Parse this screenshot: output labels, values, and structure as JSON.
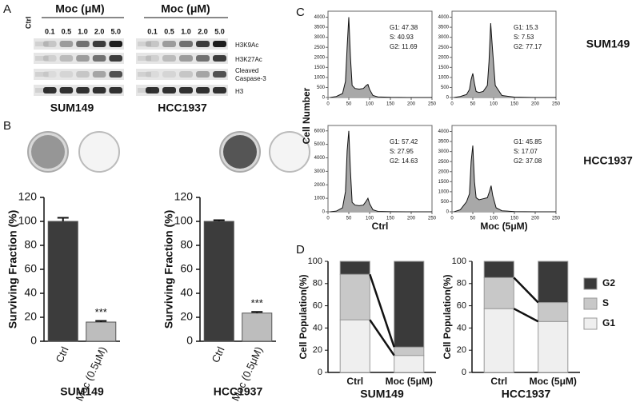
{
  "panel_labels": [
    "A",
    "B",
    "C",
    "D"
  ],
  "blot": {
    "header": "Moc (μM)",
    "ctrl": "Ctrl",
    "concentrations": [
      "0.1",
      "0.5",
      "1.0",
      "2.0",
      "5.0"
    ],
    "rows": [
      "H3K9Ac",
      "H3K27Ac",
      "Cleaved",
      "Caspase-3",
      "H3"
    ],
    "cell_lines": [
      "SUM149",
      "HCC1937"
    ]
  },
  "flow": {
    "ylabel": "Cell Number",
    "row_labels": [
      "SUM149",
      "HCC1937"
    ],
    "column_labels": [
      "Ctrl",
      "Moc (5μM)"
    ]
  },
  "chart_data": [
    {
      "type": "bar",
      "title": "SUM149",
      "ylabel": "Surviving Fraction (%)",
      "categories": [
        "Ctrl",
        "Moc (0.5μM)"
      ],
      "values": [
        100,
        16
      ],
      "errors": [
        3,
        1
      ],
      "colors": [
        "#3c3c3c",
        "#bdbdbd"
      ],
      "annotation": "***",
      "ylim": [
        0,
        120
      ],
      "yticks": [
        0,
        20,
        40,
        60,
        80,
        100,
        120
      ]
    },
    {
      "type": "bar",
      "title": "HCC1937",
      "ylabel": "Surviving Fraction (%)",
      "categories": [
        "Ctrl",
        "Moc (0.5μM)"
      ],
      "values": [
        100,
        23.5
      ],
      "errors": [
        1,
        1
      ],
      "colors": [
        "#3c3c3c",
        "#bdbdbd"
      ],
      "annotation": "***",
      "ylim": [
        0,
        120
      ],
      "yticks": [
        0,
        20,
        40,
        60,
        80,
        100,
        120
      ]
    },
    {
      "type": "line",
      "x": [
        5,
        20,
        35,
        42,
        46,
        50,
        54,
        58,
        65,
        75,
        85,
        92,
        96,
        100,
        108,
        120,
        150,
        200,
        250
      ],
      "values": [
        0,
        50,
        200,
        800,
        2500,
        4000,
        2000,
        600,
        450,
        420,
        450,
        600,
        650,
        400,
        100,
        30,
        10,
        0,
        0
      ],
      "xlim": [
        0,
        250
      ],
      "xticks": [
        0,
        50,
        100,
        150,
        200,
        250
      ],
      "ylim": [
        0,
        4300
      ],
      "yticks": [
        0,
        500,
        1000,
        1500,
        2000,
        2500,
        3000,
        3500,
        4000
      ],
      "stats": [
        "G1: 47.38",
        "S: 40.93",
        "G2: 11.69"
      ]
    },
    {
      "type": "line",
      "x": [
        5,
        20,
        35,
        42,
        46,
        50,
        54,
        58,
        65,
        75,
        85,
        89,
        93,
        97,
        104,
        120,
        150,
        200,
        250
      ],
      "values": [
        0,
        50,
        150,
        400,
        900,
        1200,
        700,
        300,
        250,
        300,
        600,
        1800,
        3700,
        2500,
        600,
        100,
        20,
        0,
        0
      ],
      "xlim": [
        0,
        250
      ],
      "xticks": [
        0,
        50,
        100,
        150,
        200,
        250
      ],
      "ylim": [
        0,
        4300
      ],
      "yticks": [
        0,
        500,
        1000,
        1500,
        2000,
        2500,
        3000,
        3500,
        4000
      ],
      "stats": [
        "G1: 15.3",
        "S: 7.53",
        "G2: 77.17"
      ]
    },
    {
      "type": "line",
      "x": [
        5,
        20,
        35,
        42,
        46,
        50,
        54,
        58,
        65,
        75,
        85,
        92,
        96,
        100,
        108,
        120,
        150,
        200,
        250
      ],
      "values": [
        0,
        50,
        300,
        1500,
        4500,
        6000,
        3000,
        700,
        500,
        450,
        500,
        800,
        1000,
        600,
        150,
        30,
        10,
        0,
        0
      ],
      "xlim": [
        0,
        250
      ],
      "xticks": [
        0,
        50,
        100,
        150,
        200,
        250
      ],
      "ylim": [
        0,
        6400
      ],
      "yticks": [
        0,
        1000,
        2000,
        3000,
        4000,
        5000,
        6000
      ],
      "stats": [
        "G1: 57.42",
        "S: 27.95",
        "G2: 14.63"
      ]
    },
    {
      "type": "line",
      "x": [
        5,
        20,
        35,
        42,
        46,
        50,
        54,
        58,
        65,
        75,
        85,
        90,
        94,
        98,
        106,
        120,
        150,
        200,
        250
      ],
      "values": [
        0,
        100,
        500,
        900,
        2500,
        3300,
        1500,
        700,
        600,
        650,
        700,
        1000,
        1300,
        800,
        200,
        50,
        10,
        0,
        0
      ],
      "xlim": [
        0,
        250
      ],
      "xticks": [
        0,
        50,
        100,
        150,
        200,
        250
      ],
      "ylim": [
        0,
        4300
      ],
      "yticks": [
        0,
        500,
        1000,
        1500,
        2000,
        2500,
        3000,
        3500,
        4000
      ],
      "stats": [
        "G1: 45.85",
        "S: 17.07",
        "G2: 37.08"
      ]
    },
    {
      "type": "stacked_bar",
      "title": "SUM149",
      "ylabel": "Cell Population(%)",
      "categories": [
        "Ctrl",
        "Moc (5μM)"
      ],
      "series": [
        {
          "name": "G1",
          "color": "#efefef",
          "values": [
            47.38,
            15.3
          ]
        },
        {
          "name": "S",
          "color": "#c8c8c8",
          "values": [
            40.93,
            7.53
          ]
        },
        {
          "name": "G2",
          "color": "#3a3a3a",
          "values": [
            11.69,
            77.17
          ]
        }
      ],
      "ylim": [
        0,
        100
      ],
      "yticks": [
        0,
        20,
        40,
        60,
        80,
        100
      ]
    },
    {
      "type": "stacked_bar",
      "title": "HCC1937",
      "ylabel": "Cell Population(%)",
      "categories": [
        "Ctrl",
        "Moc (5μM)"
      ],
      "series": [
        {
          "name": "G1",
          "color": "#efefef",
          "values": [
            57.42,
            45.85
          ]
        },
        {
          "name": "S",
          "color": "#c8c8c8",
          "values": [
            27.95,
            17.07
          ]
        },
        {
          "name": "G2",
          "color": "#3a3a3a",
          "values": [
            14.63,
            37.08
          ]
        }
      ],
      "ylim": [
        0,
        100
      ],
      "yticks": [
        0,
        20,
        40,
        60,
        80,
        100
      ],
      "legend": "right"
    }
  ]
}
